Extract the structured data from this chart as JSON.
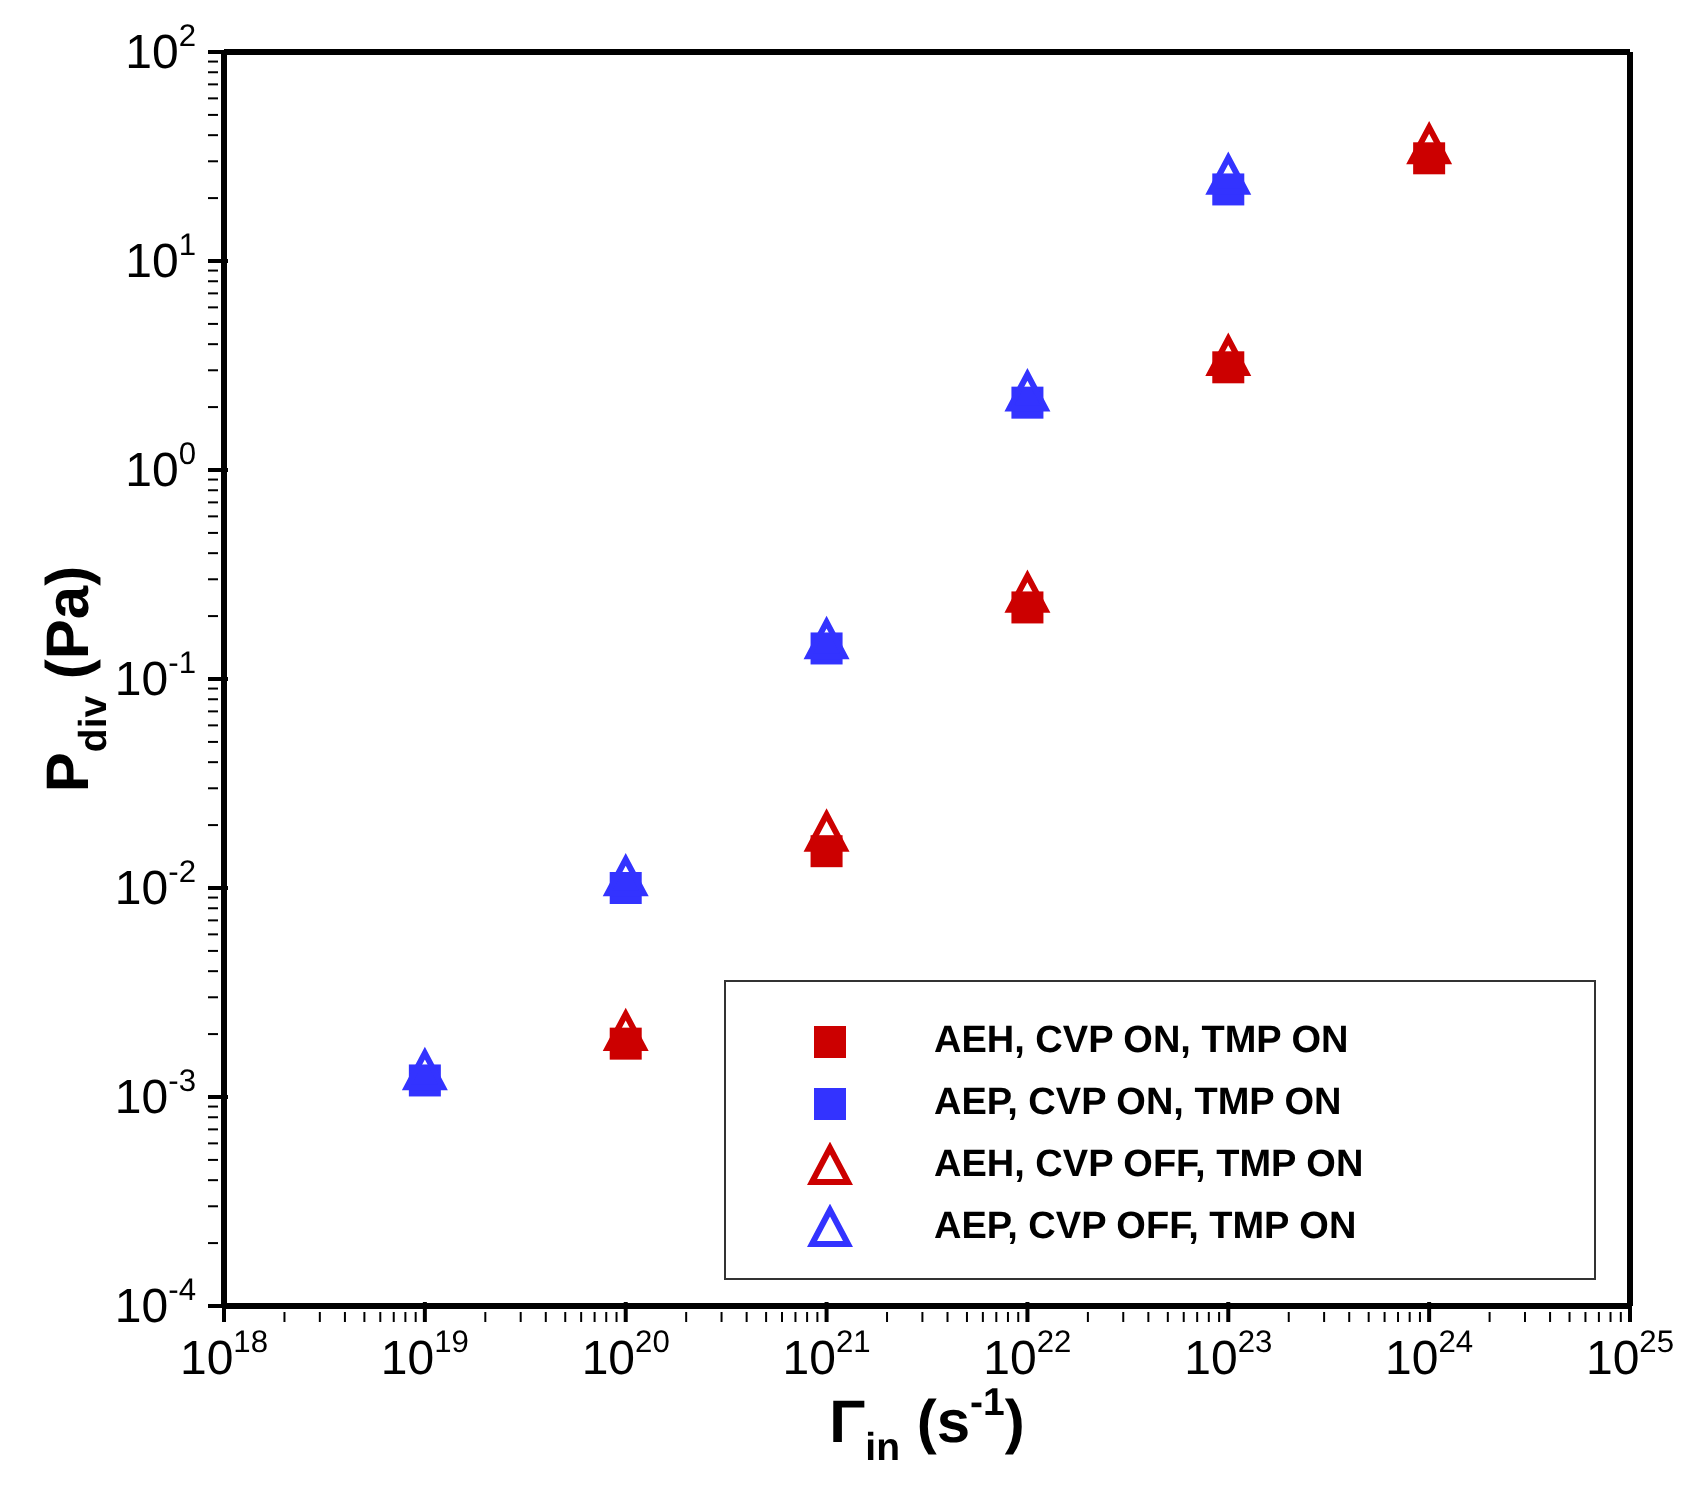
{
  "chart_data": {
    "type": "scatter",
    "xlabel": "Γ$_{in}$ (s$^{-1}$)",
    "ylabel": "P$_{div}$ (Pa)",
    "log": "xy",
    "legend": "bottom right",
    "xlim": [
      1e+18,
      1e+25
    ],
    "xticks": [
      {
        "value": 1e+18,
        "label": "10$^{18}$"
      },
      {
        "value": 2e+18,
        "label": null
      },
      {
        "value": 3e+18,
        "label": null
      },
      {
        "value": 4e+18,
        "label": null
      },
      {
        "value": 5e+18,
        "label": null
      },
      {
        "value": 6e+18,
        "label": null
      },
      {
        "value": 7e+18,
        "label": null
      },
      {
        "value": 8e+18,
        "label": null
      },
      {
        "value": 9e+18,
        "label": null
      },
      {
        "value": 1e+19,
        "label": "10$^{19}$"
      },
      {
        "value": 2e+19,
        "label": null
      },
      {
        "value": 3e+19,
        "label": null
      },
      {
        "value": 4e+19,
        "label": null
      },
      {
        "value": 5e+19,
        "label": null
      },
      {
        "value": 6e+19,
        "label": null
      },
      {
        "value": 7e+19,
        "label": null
      },
      {
        "value": 8e+19,
        "label": null
      },
      {
        "value": 9e+19,
        "label": null
      },
      {
        "value": 1e+20,
        "label": "10$^{20}$"
      },
      {
        "value": 2e+20,
        "label": null
      },
      {
        "value": 3e+20,
        "label": null
      },
      {
        "value": 4e+20,
        "label": null
      },
      {
        "value": 5e+20,
        "label": null
      },
      {
        "value": 6e+20,
        "label": null
      },
      {
        "value": 7e+20,
        "label": null
      },
      {
        "value": 8e+20,
        "label": null
      },
      {
        "value": 9e+20,
        "label": null
      },
      {
        "value": 1e+21,
        "label": "10$^{21}$"
      },
      {
        "value": 2e+21,
        "label": null
      },
      {
        "value": 3e+21,
        "label": null
      },
      {
        "value": 4e+21,
        "label": null
      },
      {
        "value": 5e+21,
        "label": null
      },
      {
        "value": 6e+21,
        "label": null
      },
      {
        "value": 7e+21,
        "label": null
      },
      {
        "value": 8e+21,
        "label": null
      },
      {
        "value": 9e+21,
        "label": null
      },
      {
        "value": 1e+22,
        "label": "10$^{22}$"
      },
      {
        "value": 2e+22,
        "label": null
      },
      {
        "value": 3e+22,
        "label": null
      },
      {
        "value": 4e+22,
        "label": null
      },
      {
        "value": 5e+22,
        "label": null
      },
      {
        "value": 6e+22,
        "label": null
      },
      {
        "value": 7e+22,
        "label": null
      },
      {
        "value": 8e+22,
        "label": null
      },
      {
        "value": 9e+22,
        "label": null
      },
      {
        "value": 1e+23,
        "label": "10$^{23}$"
      },
      {
        "value": 2e+23,
        "label": null
      },
      {
        "value": 3e+23,
        "label": null
      },
      {
        "value": 4e+23,
        "label": null
      },
      {
        "value": 5e+23,
        "label": null
      },
      {
        "value": 6e+23,
        "label": null
      },
      {
        "value": 7e+23,
        "label": null
      },
      {
        "value": 8e+23,
        "label": null
      },
      {
        "value": 9e+23,
        "label": null
      },
      {
        "value": 1e+24,
        "label": "10$^{24}$"
      },
      {
        "value": 2e+24,
        "label": null
      },
      {
        "value": 3e+24,
        "label": null
      },
      {
        "value": 4e+24,
        "label": null
      },
      {
        "value": 5e+24,
        "label": null
      },
      {
        "value": 6e+24,
        "label": null
      },
      {
        "value": 7e+24,
        "label": null
      },
      {
        "value": 8e+24,
        "label": null
      },
      {
        "value": 9e+24,
        "label": null
      },
      {
        "value": 1e+25,
        "label": "10$^{25}$"
      }
    ],
    "ylim": [
      0.0001,
      100
    ],
    "yticks": [
      {
        "value": 0.0001,
        "label": "10$^{-4}$"
      },
      {
        "value": 0.0002,
        "label": null
      },
      {
        "value": 0.0003,
        "label": null
      },
      {
        "value": 0.0004,
        "label": null
      },
      {
        "value": 0.0005,
        "label": null
      },
      {
        "value": 0.0006,
        "label": null
      },
      {
        "value": 0.0007,
        "label": null
      },
      {
        "value": 0.0008,
        "label": null
      },
      {
        "value": 0.0009,
        "label": null
      },
      {
        "value": 0.001,
        "label": "10$^{-3}$"
      },
      {
        "value": 0.002,
        "label": null
      },
      {
        "value": 0.003,
        "label": null
      },
      {
        "value": 0.004,
        "label": null
      },
      {
        "value": 0.005,
        "label": null
      },
      {
        "value": 0.006,
        "label": null
      },
      {
        "value": 0.007,
        "label": null
      },
      {
        "value": 0.008,
        "label": null
      },
      {
        "value": 0.009,
        "label": null
      },
      {
        "value": 0.01,
        "label": "10$^{-2}$"
      },
      {
        "value": 0.02,
        "label": null
      },
      {
        "value": 0.03,
        "label": null
      },
      {
        "value": 0.04,
        "label": null
      },
      {
        "value": 0.05,
        "label": null
      },
      {
        "value": 0.06,
        "label": null
      },
      {
        "value": 0.07,
        "label": null
      },
      {
        "value": 0.08,
        "label": null
      },
      {
        "value": 0.09,
        "label": null
      },
      {
        "value": 0.1,
        "label": "10$^{-1}$"
      },
      {
        "value": 0.2,
        "label": null
      },
      {
        "value": 0.3,
        "label": null
      },
      {
        "value": 0.4,
        "label": null
      },
      {
        "value": 0.5,
        "label": null
      },
      {
        "value": 0.6,
        "label": null
      },
      {
        "value": 0.7,
        "label": null
      },
      {
        "value": 0.8,
        "label": null
      },
      {
        "value": 0.9,
        "label": null
      },
      {
        "value": 1,
        "label": "10$^{0}$"
      },
      {
        "value": 2,
        "label": null
      },
      {
        "value": 3,
        "label": null
      },
      {
        "value": 4,
        "label": null
      },
      {
        "value": 5,
        "label": null
      },
      {
        "value": 6,
        "label": null
      },
      {
        "value": 7,
        "label": null
      },
      {
        "value": 8,
        "label": null
      },
      {
        "value": 9,
        "label": null
      },
      {
        "value": 10,
        "label": "10$^{1}$"
      },
      {
        "value": 20,
        "label": null
      },
      {
        "value": 30,
        "label": null
      },
      {
        "value": 40,
        "label": null
      },
      {
        "value": 50,
        "label": null
      },
      {
        "value": 60,
        "label": null
      },
      {
        "value": 70,
        "label": null
      },
      {
        "value": 80,
        "label": null
      },
      {
        "value": 90,
        "label": null
      },
      {
        "value": 100,
        "label": "10$^{2}$"
      }
    ],
    "series": [
      {
        "name": "AEH, CVP ON, TMP ON",
        "color": "#cc0000",
        "marker": "square",
        "x": [
          1e+20,
          1e+21,
          1e+22,
          1e+23,
          1e+24
        ],
        "values": [
          0.0018,
          0.015,
          0.22,
          3.1,
          31
        ]
      },
      {
        "name": "AEP, CVP ON, TMP ON",
        "color": "#3333ff",
        "marker": "square",
        "x": [
          1e+19,
          1e+20,
          1e+21,
          1e+22,
          1e+23
        ],
        "values": [
          0.0012,
          0.01,
          0.14,
          2.1,
          22
        ]
      },
      {
        "name": "AEH, CVP OFF, TMP ON",
        "color": "#cc0000",
        "marker": "triangle",
        "x": [
          1e+20,
          1e+21,
          1e+22,
          1e+23,
          1e+24
        ],
        "values": [
          0.002,
          0.018,
          0.25,
          3.4,
          35
        ]
      },
      {
        "name": "AEP, CVP OFF, TMP ON",
        "color": "#3333ff",
        "marker": "triangle",
        "x": [
          1e+19,
          1e+20,
          1e+21,
          1e+22,
          1e+23
        ],
        "values": [
          0.0013,
          0.011,
          0.15,
          2.3,
          25
        ]
      }
    ]
  }
}
